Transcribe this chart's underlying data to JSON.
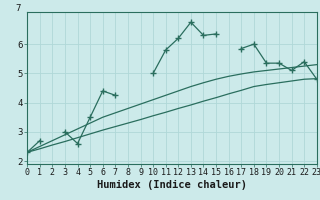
{
  "xlabel": "Humidex (Indice chaleur)",
  "bg_color": "#cceaea",
  "line_color": "#2a6e5e",
  "grid_color": "#b0d8d8",
  "spine_color": "#2a6e5e",
  "x_humidex": [
    0,
    1,
    2,
    3,
    4,
    5,
    6,
    7,
    8,
    9,
    10,
    11,
    12,
    13,
    14,
    15,
    16,
    17,
    18,
    19,
    20,
    21,
    22,
    23
  ],
  "y_curve": [
    2.3,
    2.7,
    null,
    3.0,
    2.6,
    3.5,
    4.4,
    4.25,
    null,
    null,
    5.0,
    5.8,
    6.2,
    6.75,
    6.3,
    6.35,
    null,
    5.85,
    6.0,
    5.35,
    5.35,
    5.1,
    5.4,
    4.8
  ],
  "y_line1": [
    2.3,
    2.5,
    2.7,
    2.9,
    3.1,
    3.3,
    3.5,
    3.65,
    3.8,
    3.95,
    4.1,
    4.25,
    4.4,
    4.55,
    4.68,
    4.8,
    4.9,
    4.98,
    5.05,
    5.1,
    5.15,
    5.2,
    5.25,
    5.3
  ],
  "y_line2": [
    2.3,
    2.42,
    2.55,
    2.67,
    2.8,
    2.93,
    3.06,
    3.18,
    3.3,
    3.42,
    3.55,
    3.67,
    3.8,
    3.92,
    4.05,
    4.17,
    4.3,
    4.42,
    4.55,
    4.62,
    4.68,
    4.74,
    4.8,
    4.82
  ],
  "xlim": [
    0,
    23
  ],
  "ylim": [
    1.9,
    7.1
  ],
  "yticks": [
    2,
    3,
    4,
    5,
    6
  ],
  "xticks": [
    0,
    1,
    2,
    3,
    4,
    5,
    6,
    7,
    8,
    9,
    10,
    11,
    12,
    13,
    14,
    15,
    16,
    17,
    18,
    19,
    20,
    21,
    22,
    23
  ],
  "ytop_label": "7",
  "tick_fontsize": 6.0,
  "xlabel_fontsize": 7.5
}
